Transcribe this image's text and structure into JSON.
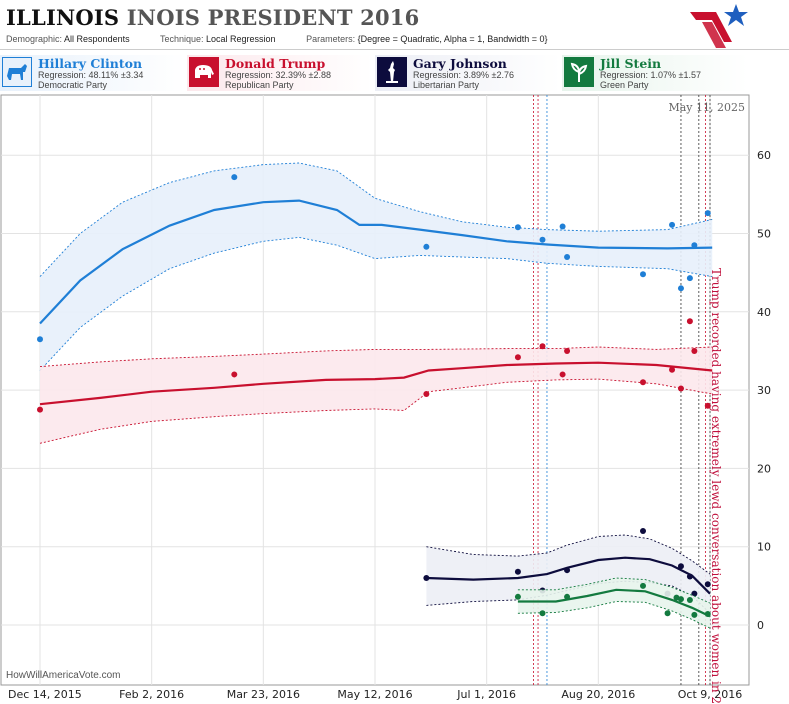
{
  "header": {
    "title_primary": "ILLINOIS",
    "title_secondary": "INOIS PRESIDENT 2016",
    "demographic_label": "Demographic:",
    "demographic_value": "All Respondents",
    "technique_label": "Technique:",
    "technique_value": "Local Regression",
    "parameters_label": "Parameters:",
    "parameters_value": "{Degree = Quadratic, Alpha = 1, Bandwidth = 0}"
  },
  "candidates": [
    {
      "name": "Hillary Clinton",
      "regression": "Regression: 48.11% ±3.34",
      "party": "Democratic Party",
      "color": "#1f7fd6",
      "icon": "donkey-icon"
    },
    {
      "name": "Donald Trump",
      "regression": "Regression: 32.39% ±2.88",
      "party": "Republican Party",
      "color": "#c8102e",
      "icon": "elephant-icon"
    },
    {
      "name": "Gary Johnson",
      "regression": "Regression: 3.89% ±2.76",
      "party": "Libertarian Party",
      "color": "#0d0c3d",
      "icon": "liberty-statue-icon"
    },
    {
      "name": "Jill Stein",
      "regression": "Regression: 1.07% ±1.57",
      "party": "Green Party",
      "color": "#137a3f",
      "icon": "leaf-icon"
    }
  ],
  "chart_data": {
    "type": "line",
    "x_tick_labels": [
      "Dec 14, 2015",
      "Feb 2, 2016",
      "Mar 23, 2016",
      "May 12, 2016",
      "Jul 1, 2016",
      "Aug 20, 2016",
      "Oct 9, 2016"
    ],
    "x_ticks": [
      "2015-12-14",
      "2016-02-02",
      "2016-03-23",
      "2016-05-12",
      "2016-07-01",
      "2016-08-20",
      "2016-10-09"
    ],
    "xlim": [
      "2015-12-14",
      "2016-10-19"
    ],
    "ylim": [
      -5,
      72
    ],
    "y_ticks": [
      0,
      10,
      20,
      30,
      40,
      50,
      60
    ],
    "top_date": "May 11, 2025",
    "annotation": "Trump recorded having extremely lewd conversation about women in 2005",
    "watermark": "HowWillAmericaVote.com",
    "markers": [
      {
        "date": "2016-07-22",
        "color": "#c8102e"
      },
      {
        "date": "2016-07-24",
        "color": "#c8102e"
      },
      {
        "date": "2016-07-28",
        "color": "#1f7fd6"
      },
      {
        "date": "2016-09-26",
        "color": "#333333"
      },
      {
        "date": "2016-10-04",
        "color": "#333333"
      },
      {
        "date": "2016-10-07",
        "color": "#c8102e"
      },
      {
        "date": "2016-10-09",
        "color": "#333333"
      }
    ],
    "series": [
      {
        "name": "Hillary Clinton",
        "color": "#1f7fd6",
        "band": "#e7f0fb",
        "line": [
          [
            "2015-12-14",
            38.5
          ],
          [
            "2016-01-01",
            44
          ],
          [
            "2016-01-20",
            48
          ],
          [
            "2016-02-10",
            51
          ],
          [
            "2016-03-01",
            53
          ],
          [
            "2016-03-23",
            54
          ],
          [
            "2016-04-08",
            54.2
          ],
          [
            "2016-04-25",
            53
          ],
          [
            "2016-05-05",
            51.1
          ],
          [
            "2016-05-15",
            51.1
          ],
          [
            "2016-06-01",
            50.5
          ],
          [
            "2016-06-20",
            49.8
          ],
          [
            "2016-07-10",
            49
          ],
          [
            "2016-07-28",
            48.6
          ],
          [
            "2016-08-20",
            48.2
          ],
          [
            "2016-09-20",
            48.1
          ],
          [
            "2016-10-10",
            48.2
          ]
        ],
        "upper": [
          [
            "2015-12-14",
            44.5
          ],
          [
            "2016-01-01",
            50
          ],
          [
            "2016-01-20",
            54
          ],
          [
            "2016-02-10",
            56.5
          ],
          [
            "2016-03-01",
            58
          ],
          [
            "2016-03-23",
            58.8
          ],
          [
            "2016-04-08",
            59
          ],
          [
            "2016-04-25",
            58
          ],
          [
            "2016-05-12",
            54.5
          ],
          [
            "2016-06-01",
            52.8
          ],
          [
            "2016-06-20",
            51.5
          ],
          [
            "2016-07-10",
            50.8
          ],
          [
            "2016-07-28",
            50.5
          ],
          [
            "2016-08-20",
            50.3
          ],
          [
            "2016-09-20",
            50.5
          ],
          [
            "2016-10-10",
            51.8
          ]
        ],
        "lower": [
          [
            "2015-12-14",
            32.5
          ],
          [
            "2016-01-01",
            38
          ],
          [
            "2016-01-20",
            42
          ],
          [
            "2016-02-10",
            45.5
          ],
          [
            "2016-03-01",
            47.5
          ],
          [
            "2016-03-23",
            49
          ],
          [
            "2016-04-08",
            49.5
          ],
          [
            "2016-04-25",
            48.5
          ],
          [
            "2016-05-12",
            46.8
          ],
          [
            "2016-06-01",
            47.2
          ],
          [
            "2016-06-20",
            47
          ],
          [
            "2016-07-10",
            46.8
          ],
          [
            "2016-07-28",
            46.2
          ],
          [
            "2016-08-20",
            45.8
          ],
          [
            "2016-09-20",
            45.5
          ],
          [
            "2016-10-10",
            44.5
          ]
        ],
        "points": [
          [
            "2015-12-14",
            36.5
          ],
          [
            "2016-03-10",
            57.2
          ],
          [
            "2016-06-04",
            48.3
          ],
          [
            "2016-07-15",
            50.8
          ],
          [
            "2016-07-26",
            49.2
          ],
          [
            "2016-08-04",
            50.9
          ],
          [
            "2016-08-06",
            47
          ],
          [
            "2016-09-09",
            44.8
          ],
          [
            "2016-09-22",
            51.1
          ],
          [
            "2016-09-26",
            43
          ],
          [
            "2016-09-30",
            44.3
          ],
          [
            "2016-10-02",
            48.5
          ],
          [
            "2016-10-08",
            52.6
          ]
        ]
      },
      {
        "name": "Donald Trump",
        "color": "#c8102e",
        "band": "#fce8ec",
        "line": [
          [
            "2015-12-14",
            28.2
          ],
          [
            "2016-01-10",
            29
          ],
          [
            "2016-02-02",
            29.8
          ],
          [
            "2016-03-01",
            30.3
          ],
          [
            "2016-03-23",
            30.8
          ],
          [
            "2016-04-20",
            31.3
          ],
          [
            "2016-05-12",
            31.4
          ],
          [
            "2016-05-25",
            31.6
          ],
          [
            "2016-06-05",
            32.5
          ],
          [
            "2016-06-20",
            32.8
          ],
          [
            "2016-07-10",
            33.2
          ],
          [
            "2016-08-01",
            33.4
          ],
          [
            "2016-08-20",
            33.5
          ],
          [
            "2016-09-15",
            33.2
          ],
          [
            "2016-10-10",
            32.5
          ]
        ],
        "upper": [
          [
            "2015-12-14",
            33
          ],
          [
            "2016-01-10",
            33.6
          ],
          [
            "2016-02-02",
            34
          ],
          [
            "2016-03-01",
            34.3
          ],
          [
            "2016-03-23",
            34.6
          ],
          [
            "2016-04-20",
            35
          ],
          [
            "2016-05-12",
            35.2
          ],
          [
            "2016-06-05",
            35.2
          ],
          [
            "2016-07-10",
            35.3
          ],
          [
            "2016-08-01",
            35.3
          ],
          [
            "2016-08-20",
            35.5
          ],
          [
            "2016-09-15",
            35.2
          ],
          [
            "2016-10-10",
            35.5
          ]
        ],
        "lower": [
          [
            "2015-12-14",
            23.2
          ],
          [
            "2016-01-10",
            25
          ],
          [
            "2016-02-02",
            26
          ],
          [
            "2016-03-01",
            26.6
          ],
          [
            "2016-03-23",
            27
          ],
          [
            "2016-04-20",
            27.4
          ],
          [
            "2016-05-12",
            27.6
          ],
          [
            "2016-05-25",
            27.4
          ],
          [
            "2016-06-05",
            29.8
          ],
          [
            "2016-06-20",
            30.3
          ],
          [
            "2016-07-10",
            31
          ],
          [
            "2016-08-01",
            31.3
          ],
          [
            "2016-08-20",
            31.4
          ],
          [
            "2016-09-15",
            30.8
          ],
          [
            "2016-10-10",
            29.5
          ]
        ],
        "points": [
          [
            "2015-12-14",
            27.5
          ],
          [
            "2016-03-10",
            32
          ],
          [
            "2016-06-04",
            29.5
          ],
          [
            "2016-07-15",
            34.2
          ],
          [
            "2016-07-26",
            35.6
          ],
          [
            "2016-08-04",
            32
          ],
          [
            "2016-08-06",
            35
          ],
          [
            "2016-09-09",
            31
          ],
          [
            "2016-09-22",
            32.6
          ],
          [
            "2016-09-26",
            30.2
          ],
          [
            "2016-09-30",
            38.8
          ],
          [
            "2016-10-02",
            35
          ],
          [
            "2016-10-08",
            28
          ]
        ]
      },
      {
        "name": "Gary Johnson",
        "color": "#0d0c3d",
        "band": "#eceef5",
        "line": [
          [
            "2016-06-04",
            6
          ],
          [
            "2016-06-25",
            5.8
          ],
          [
            "2016-07-15",
            6
          ],
          [
            "2016-07-28",
            6.5
          ],
          [
            "2016-08-06",
            7.3
          ],
          [
            "2016-08-20",
            8.3
          ],
          [
            "2016-09-01",
            8.6
          ],
          [
            "2016-09-12",
            8.4
          ],
          [
            "2016-09-22",
            7.6
          ],
          [
            "2016-10-01",
            6.3
          ],
          [
            "2016-10-09",
            4
          ]
        ],
        "upper": [
          [
            "2016-06-04",
            10
          ],
          [
            "2016-06-25",
            9
          ],
          [
            "2016-07-15",
            8.8
          ],
          [
            "2016-07-28",
            9.2
          ],
          [
            "2016-08-06",
            10.2
          ],
          [
            "2016-08-20",
            11.3
          ],
          [
            "2016-09-01",
            11.5
          ],
          [
            "2016-09-12",
            11
          ],
          [
            "2016-09-22",
            9.8
          ],
          [
            "2016-10-01",
            8.2
          ],
          [
            "2016-10-09",
            6.5
          ]
        ],
        "lower": [
          [
            "2016-06-04",
            2.5
          ],
          [
            "2016-06-25",
            3
          ],
          [
            "2016-07-15",
            3.2
          ],
          [
            "2016-07-28",
            3.8
          ],
          [
            "2016-08-06",
            4.4
          ],
          [
            "2016-08-20",
            5.3
          ],
          [
            "2016-09-01",
            5.6
          ],
          [
            "2016-09-12",
            5.4
          ],
          [
            "2016-09-22",
            5
          ],
          [
            "2016-10-01",
            3.7
          ],
          [
            "2016-10-09",
            1.5
          ]
        ],
        "points": [
          [
            "2016-06-04",
            6
          ],
          [
            "2016-07-15",
            6.8
          ],
          [
            "2016-07-26",
            4.4
          ],
          [
            "2016-08-06",
            7
          ],
          [
            "2016-09-09",
            12
          ],
          [
            "2016-09-20",
            4
          ],
          [
            "2016-09-26",
            7.5
          ],
          [
            "2016-09-30",
            6.2
          ],
          [
            "2016-10-02",
            4
          ],
          [
            "2016-10-08",
            5.2
          ]
        ]
      },
      {
        "name": "Jill Stein",
        "color": "#137a3f",
        "band": "#e7f4ec",
        "line": [
          [
            "2016-07-15",
            3
          ],
          [
            "2016-08-01",
            3
          ],
          [
            "2016-08-15",
            3.7
          ],
          [
            "2016-08-28",
            4.5
          ],
          [
            "2016-09-10",
            4.3
          ],
          [
            "2016-09-22",
            3.2
          ],
          [
            "2016-10-01",
            2.2
          ],
          [
            "2016-10-09",
            1.1
          ]
        ],
        "upper": [
          [
            "2016-07-15",
            4.5
          ],
          [
            "2016-08-01",
            4.5
          ],
          [
            "2016-08-15",
            5.2
          ],
          [
            "2016-08-28",
            6
          ],
          [
            "2016-09-10",
            5.8
          ],
          [
            "2016-09-22",
            4.8
          ],
          [
            "2016-10-01",
            3.8
          ],
          [
            "2016-10-09",
            2.8
          ]
        ],
        "lower": [
          [
            "2016-07-15",
            1.5
          ],
          [
            "2016-08-01",
            1.6
          ],
          [
            "2016-08-15",
            2.2
          ],
          [
            "2016-08-28",
            3
          ],
          [
            "2016-09-10",
            2.9
          ],
          [
            "2016-09-22",
            1.8
          ],
          [
            "2016-10-01",
            0.7
          ],
          [
            "2016-10-09",
            -0.4
          ]
        ],
        "points": [
          [
            "2016-07-15",
            3.6
          ],
          [
            "2016-07-26",
            1.5
          ],
          [
            "2016-08-06",
            3.6
          ],
          [
            "2016-09-09",
            5
          ],
          [
            "2016-09-20",
            1.5
          ],
          [
            "2016-09-24",
            3.5
          ],
          [
            "2016-09-26",
            3.3
          ],
          [
            "2016-09-30",
            3.2
          ],
          [
            "2016-10-02",
            1.3
          ],
          [
            "2016-10-08",
            1.4
          ]
        ]
      }
    ]
  }
}
